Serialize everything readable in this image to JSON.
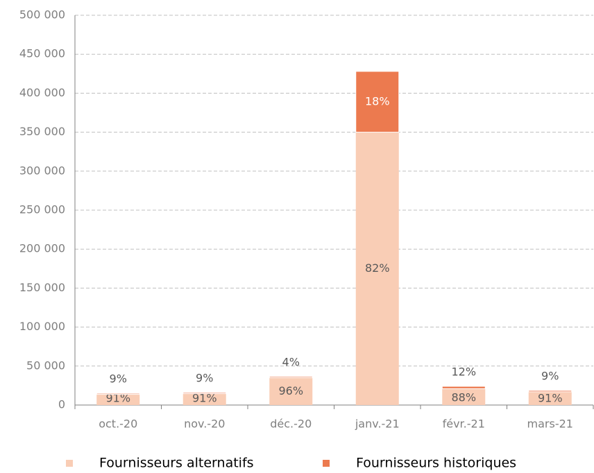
{
  "chart_data": {
    "type": "stacked_bar",
    "categories": [
      "oct.-20",
      "nov.-20",
      "déc.-20",
      "janv.-21",
      "févr.-21",
      "mars-21"
    ],
    "series": [
      {
        "name": "Fournisseurs alternatifs",
        "color": "#f9cdb5",
        "values": [
          13700,
          14600,
          35000,
          350000,
          21000,
          17000
        ],
        "share_labels": [
          "91%",
          "91%",
          "96%",
          "82%",
          "88%",
          "91%"
        ]
      },
      {
        "name": "Fournisseurs historiques",
        "color": "#ec7a4f",
        "values": [
          1300,
          1400,
          1500,
          78000,
          3000,
          1700
        ],
        "share_labels": [
          "9%",
          "9%",
          "4%",
          "18%",
          "12%",
          "9%"
        ]
      }
    ],
    "ylim": [
      0,
      500000
    ],
    "yticks": [
      0,
      {
        "value": 50000,
        "label": "50 000"
      },
      {
        "value": 100000,
        "label": "100 000"
      },
      {
        "value": 150000,
        "label": "150 000"
      },
      {
        "value": 200000,
        "label": "200 000"
      },
      {
        "value": 250000,
        "label": "250 000"
      },
      {
        "value": 300000,
        "label": "300 000"
      },
      {
        "value": 350000,
        "label": "350 000"
      },
      {
        "value": 400000,
        "label": "400 000"
      },
      {
        "value": 450000,
        "label": "450 000"
      },
      {
        "value": 500000,
        "label": "500 000"
      }
    ],
    "grid": true,
    "legend": "bottom"
  }
}
